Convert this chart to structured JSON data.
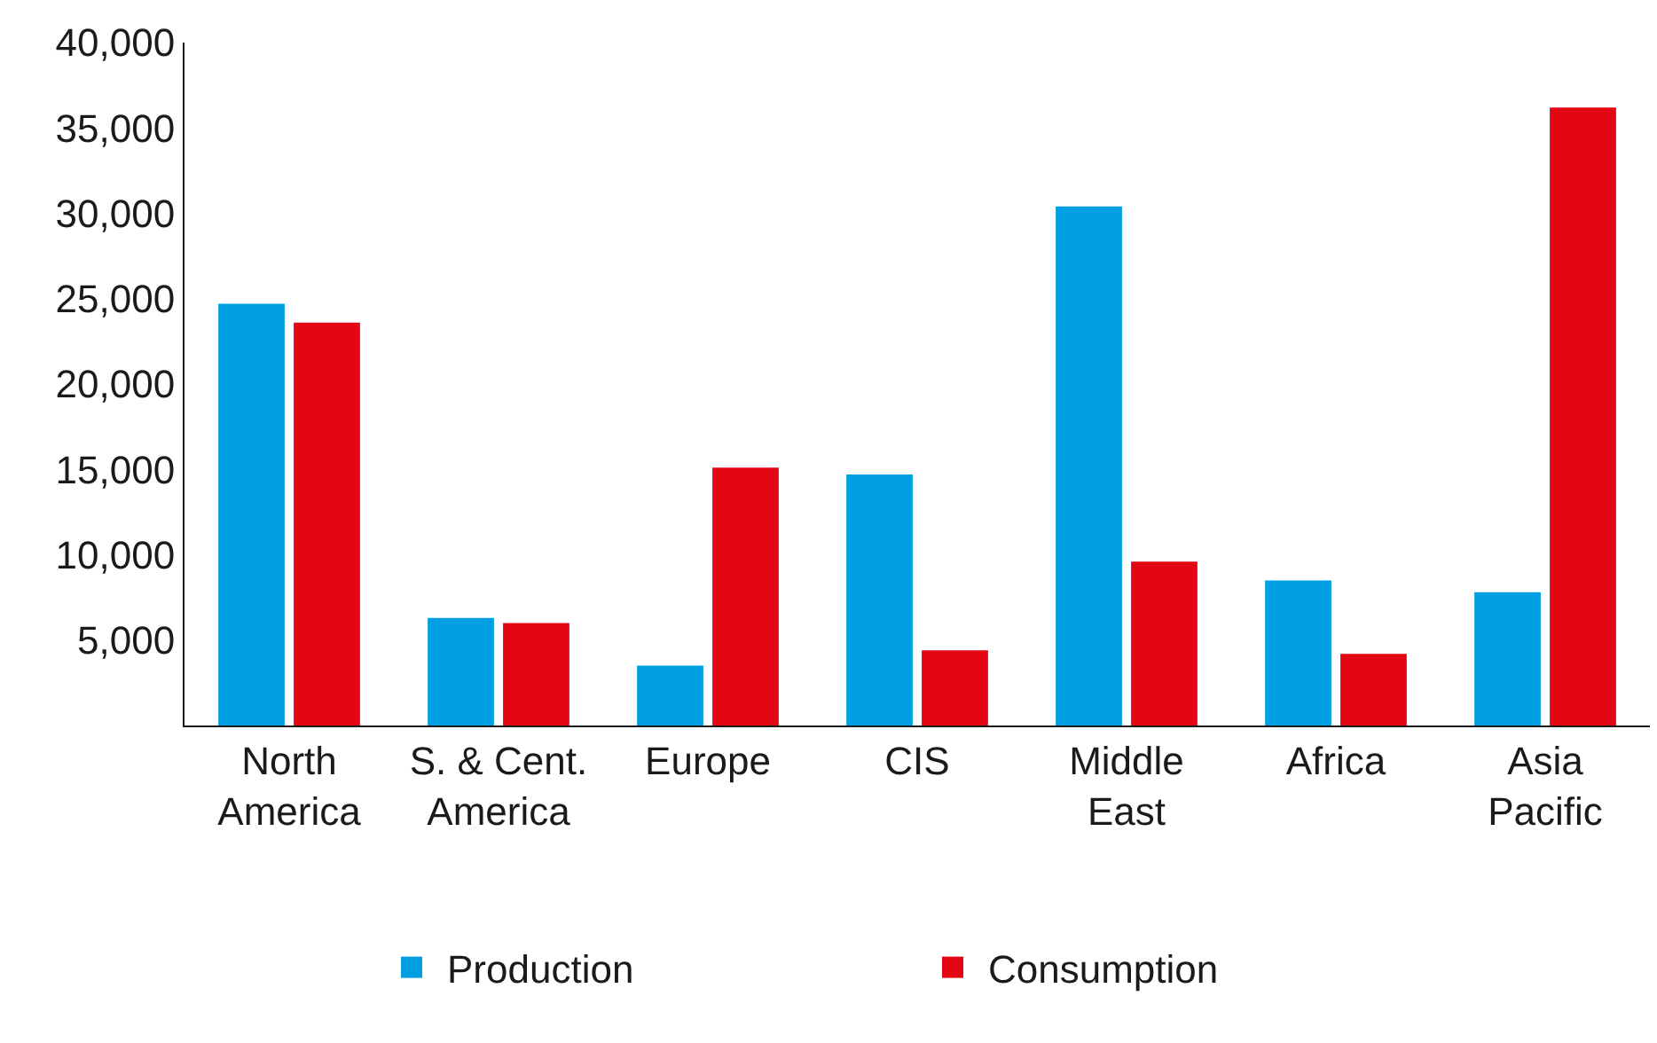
{
  "chart_data": {
    "type": "bar",
    "categories": [
      "North\nAmerica",
      "S. & Cent.\nAmerica",
      "Europe",
      "CIS",
      "Middle\nEast",
      "Africa",
      "Asia\nPacific"
    ],
    "series": [
      {
        "name": "Production",
        "color": "#009fe3",
        "values": [
          24700,
          6300,
          3500,
          14700,
          30400,
          8500,
          7800
        ]
      },
      {
        "name": "Consumption",
        "color": "#e30613",
        "values": [
          23600,
          6000,
          15100,
          4400,
          9600,
          4200,
          36200
        ]
      }
    ],
    "ylim": [
      0,
      40000
    ],
    "yticks": [
      {
        "value": 5000,
        "label": "5,000"
      },
      {
        "value": 10000,
        "label": "10,000"
      },
      {
        "value": 15000,
        "label": "15,000"
      },
      {
        "value": 20000,
        "label": "20,000"
      },
      {
        "value": 25000,
        "label": "25,000"
      },
      {
        "value": 30000,
        "label": "30,000"
      },
      {
        "value": 35000,
        "label": "35,000"
      },
      {
        "value": 40000,
        "label": "40,000"
      }
    ],
    "legend": "bottom"
  }
}
